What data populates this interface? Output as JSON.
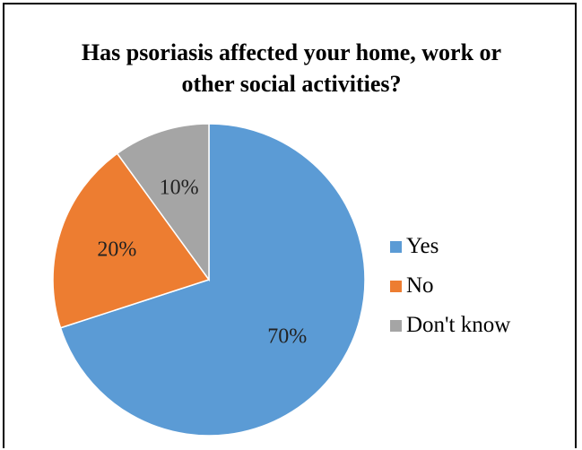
{
  "chart_data": {
    "type": "pie",
    "title_line1": "Has psoriasis affected your home, work or",
    "title_line2": "other social activities?",
    "categories": [
      "Yes",
      "No",
      "Don't know"
    ],
    "values": [
      70,
      20,
      10
    ],
    "labels": [
      "70%",
      "20%",
      "10%"
    ],
    "colors": [
      "#5b9bd5",
      "#ed7d31",
      "#a5a5a5"
    ],
    "legend_position": "right"
  }
}
